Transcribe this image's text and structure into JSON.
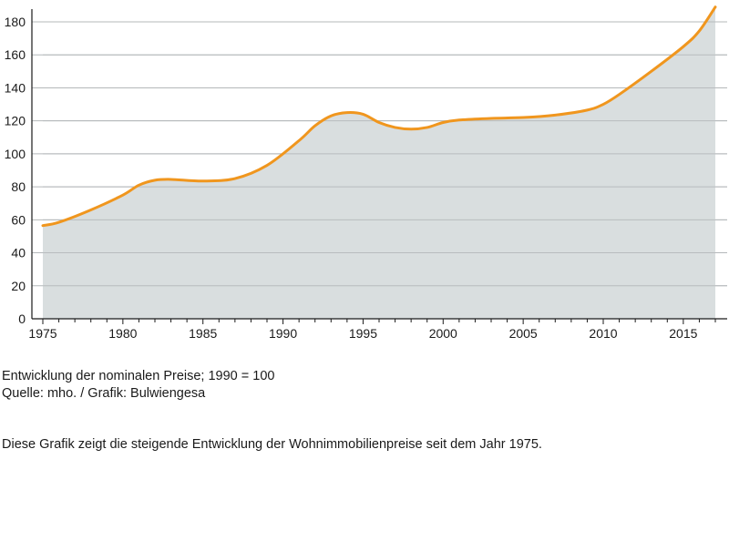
{
  "chart_data": {
    "type": "area",
    "x": [
      1975,
      1976,
      1978,
      1980,
      1981,
      1982,
      1983,
      1985,
      1987,
      1989,
      1991,
      1992,
      1993,
      1994,
      1995,
      1996,
      1997,
      1998,
      1999,
      2000,
      2001,
      2003,
      2005,
      2007,
      2009,
      2010,
      2011,
      2013,
      2015,
      2016,
      2017
    ],
    "series": [
      {
        "values": [
          56.5,
          58.5,
          66,
          75,
          81,
          84,
          84.5,
          83.5,
          85,
          93,
          108,
          117,
          123,
          125,
          124,
          119,
          116,
          115,
          116,
          119,
          120.5,
          121.5,
          122,
          123.5,
          126.5,
          130,
          136,
          150,
          165,
          174.5,
          189
        ]
      }
    ],
    "xticks": [
      "1975",
      "1980",
      "1985",
      "1990",
      "1995",
      "2000",
      "2005",
      "2010",
      "2015"
    ],
    "yticks": [
      "0",
      "20",
      "40",
      "60",
      "80",
      "100",
      "120",
      "140",
      "160",
      "180"
    ],
    "xlim": [
      1975,
      2017
    ],
    "ylim": [
      0,
      180
    ],
    "grid": true,
    "xlabel": "",
    "ylabel": "",
    "title": ""
  },
  "colors": {
    "line": "#f0961e",
    "area": "#d9dedf",
    "grid": "#b4b8ba",
    "axis": "#1a1a1a"
  },
  "captions": {
    "line1": "Entwicklung der nominalen Preise; 1990 = 100",
    "line2": "Quelle: mho. / Grafik: Bulwiengesa",
    "description": "Diese Grafik zeigt die steigende Entwicklung der Wohnimmobilienpreise seit dem Jahr 1975."
  }
}
